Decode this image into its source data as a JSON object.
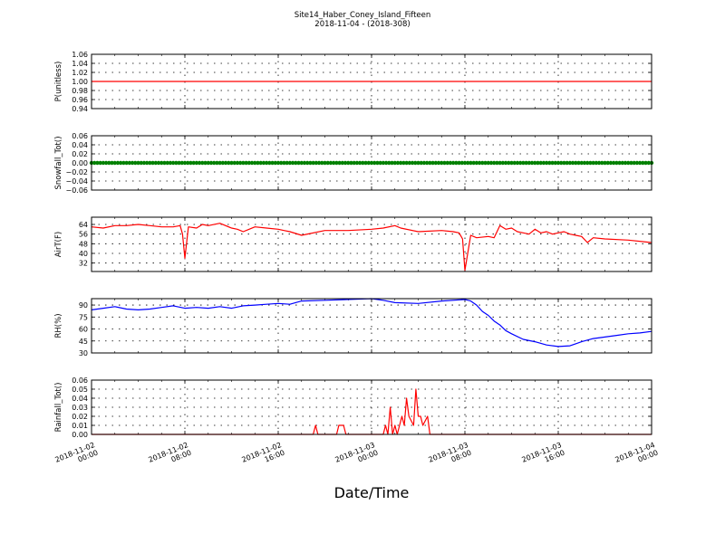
{
  "title": "Site14_Haber_Coney_Island_Fifteen",
  "subtitle": "2018-11-04 - (2018-308)",
  "xlabel": "Date/Time",
  "x_ticks": [
    {
      "t": 0,
      "line1": "2018-11-02",
      "line2": "00:00"
    },
    {
      "t": 8,
      "line1": "2018-11-02",
      "line2": "08:00"
    },
    {
      "t": 16,
      "line1": "2018-11-02",
      "line2": "16:00"
    },
    {
      "t": 24,
      "line1": "2018-11-03",
      "line2": "00:00"
    },
    {
      "t": 32,
      "line1": "2018-11-03",
      "line2": "08:00"
    },
    {
      "t": 40,
      "line1": "2018-11-03",
      "line2": "16:00"
    },
    {
      "t": 48,
      "line1": "2018-11-04",
      "line2": "00:00"
    }
  ],
  "chart_data": [
    {
      "type": "line",
      "ylabel": "P(unitless)",
      "ylim": [
        0.94,
        1.06
      ],
      "yticks": [
        0.94,
        0.96,
        0.98,
        1.0,
        1.02,
        1.04,
        1.06
      ],
      "ytick_labels": [
        "0.94",
        "0.96",
        "0.98",
        "1.00",
        "1.02",
        "1.04",
        "1.06"
      ],
      "color": "#ff0000",
      "series": [
        {
          "x": [
            0,
            48
          ],
          "y": [
            1.0,
            1.0
          ]
        }
      ]
    },
    {
      "type": "line",
      "ylabel": "Snowfall_Tot()",
      "ylim": [
        -0.06,
        0.06
      ],
      "yticks": [
        -0.06,
        -0.04,
        -0.02,
        0.0,
        0.02,
        0.04,
        0.06
      ],
      "ytick_labels": [
        "−0.06",
        "−0.04",
        "−0.02",
        "0.00",
        "0.02",
        "0.04",
        "0.06"
      ],
      "color": "#008000",
      "markers": true,
      "series": [
        {
          "x": [
            0,
            48
          ],
          "y": [
            0.0,
            0.0
          ]
        }
      ]
    },
    {
      "type": "line",
      "ylabel": "AirT(F)",
      "ylim": [
        25,
        70
      ],
      "yticks": [
        32,
        40,
        48,
        56,
        64
      ],
      "ytick_labels": [
        "32",
        "40",
        "48",
        "56",
        "64"
      ],
      "color": "#ff0000",
      "series": [
        {
          "x": [
            0,
            1,
            2,
            3,
            4,
            5,
            6,
            7,
            7.6,
            7.8,
            8,
            8.3,
            9,
            9.5,
            10,
            11,
            12,
            12.5,
            13,
            14,
            15,
            16,
            16.5,
            17,
            18,
            20,
            22,
            24,
            25,
            26,
            26.5,
            28,
            30,
            31,
            31.5,
            31.8,
            32,
            32.5,
            33,
            34,
            34.5,
            35,
            35.5,
            36,
            36.5,
            37,
            37.5,
            38,
            38.5,
            39,
            39.5,
            40,
            40.5,
            41,
            41.5,
            42,
            42.5,
            43,
            44,
            46,
            48
          ],
          "y": [
            62,
            61,
            63,
            63,
            64,
            63,
            62,
            62,
            63,
            56,
            36,
            62,
            61,
            64,
            63,
            65,
            61,
            60,
            58,
            62,
            61,
            60,
            59,
            58,
            55,
            59,
            59,
            60,
            61,
            63,
            61,
            58,
            59,
            58,
            57,
            52,
            26,
            55,
            53,
            54,
            53,
            63,
            60,
            61,
            58,
            57,
            56,
            60,
            57,
            58,
            56,
            57,
            58,
            56,
            55,
            54,
            49,
            53,
            52,
            51,
            49
          ]
        }
      ]
    },
    {
      "type": "line",
      "ylabel": "RH(%)",
      "ylim": [
        30,
        98
      ],
      "yticks": [
        30,
        45,
        60,
        75,
        90
      ],
      "ytick_labels": [
        "30",
        "45",
        "60",
        "75",
        "90"
      ],
      "color": "#0000ff",
      "series": [
        {
          "x": [
            0,
            1,
            2,
            3,
            4,
            5,
            6,
            7,
            8,
            9,
            10,
            11,
            12,
            13,
            14,
            15,
            16,
            17,
            18,
            20,
            22,
            24,
            25,
            26,
            28,
            30,
            32,
            32.5,
            33,
            33.5,
            34,
            34.5,
            35,
            35.5,
            36,
            37,
            38,
            39,
            40,
            41,
            42,
            43,
            44,
            45,
            46,
            47,
            48
          ],
          "y": [
            84,
            86,
            88,
            85,
            84,
            85,
            87,
            89,
            86,
            87,
            86,
            88,
            86,
            89,
            90,
            91,
            92,
            91,
            95,
            96,
            97,
            98,
            96,
            93,
            92,
            95,
            97,
            95,
            90,
            82,
            77,
            70,
            65,
            58,
            54,
            47,
            44,
            40,
            38,
            39,
            44,
            48,
            50,
            52,
            54,
            55,
            57
          ]
        }
      ]
    },
    {
      "type": "line",
      "ylabel": "Rainfall_Tot()",
      "ylim": [
        0.0,
        0.06
      ],
      "yticks": [
        0.0,
        0.01,
        0.02,
        0.03,
        0.04,
        0.05,
        0.06
      ],
      "ytick_labels": [
        "0.00",
        "0.01",
        "0.02",
        "0.03",
        "0.04",
        "0.05",
        "0.06"
      ],
      "color": "#ff0000",
      "series": [
        {
          "x": [
            0,
            19,
            19.2,
            19.4,
            21,
            21.2,
            21.6,
            21.8,
            25,
            25.2,
            25.4,
            25.6,
            25.8,
            26,
            26.2,
            26.6,
            26.8,
            27,
            27.2,
            27.6,
            27.8,
            28,
            28.2,
            28.4,
            28.8,
            29,
            48
          ],
          "y": [
            0,
            0,
            0.01,
            0,
            0,
            0.01,
            0.01,
            0,
            0,
            0.01,
            0,
            0.03,
            0,
            0.01,
            0,
            0.02,
            0.01,
            0.04,
            0.02,
            0.01,
            0.05,
            0.02,
            0.02,
            0.01,
            0.02,
            0,
            0
          ]
        }
      ]
    }
  ]
}
